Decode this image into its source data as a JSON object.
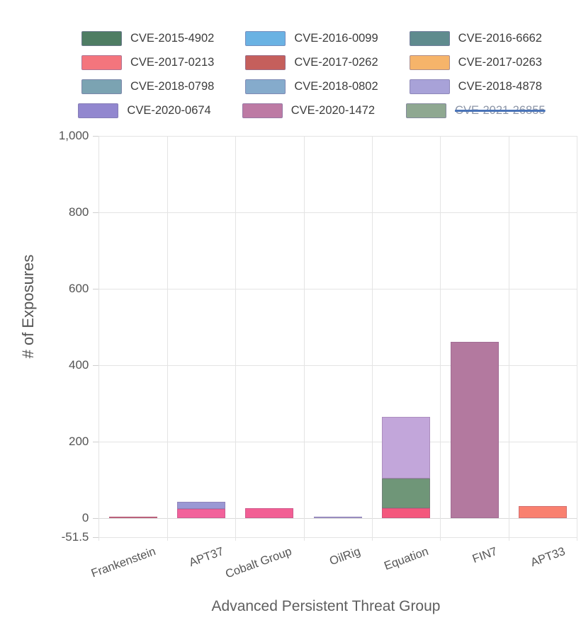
{
  "legend": {
    "rows": [
      [
        {
          "label": "CVE-2015-4902",
          "color": "#4e7d63",
          "disabled": false
        },
        {
          "label": "CVE-2016-0099",
          "color": "#6ab2e3",
          "disabled": false
        },
        {
          "label": "CVE-2016-6662",
          "color": "#5f8b8e",
          "disabled": false
        }
      ],
      [
        {
          "label": "CVE-2017-0213",
          "color": "#f4757d",
          "disabled": false
        },
        {
          "label": "CVE-2017-0262",
          "color": "#c55f5c",
          "disabled": false
        },
        {
          "label": "CVE-2017-0263",
          "color": "#f6b46a",
          "disabled": false
        }
      ],
      [
        {
          "label": "CVE-2018-0798",
          "color": "#7ba3b2",
          "disabled": false
        },
        {
          "label": "CVE-2018-0802",
          "color": "#85abcc",
          "disabled": false
        },
        {
          "label": "CVE-2018-4878",
          "color": "#a8a2d8",
          "disabled": false
        }
      ],
      [
        {
          "label": "CVE-2020-0674",
          "color": "#9287cf",
          "disabled": false
        },
        {
          "label": "CVE-2020-1472",
          "color": "#bd7aa4",
          "disabled": false
        },
        {
          "label": "CVE-2021-26855",
          "color": "#8fa891",
          "disabled": true
        }
      ]
    ]
  },
  "y_axis": {
    "title": "# of Exposures",
    "ticks": [
      {
        "label": "1,000",
        "value": 1000
      },
      {
        "label": "800",
        "value": 800
      },
      {
        "label": "600",
        "value": 600
      },
      {
        "label": "400",
        "value": 400
      },
      {
        "label": "200",
        "value": 200
      },
      {
        "label": "0",
        "value": 0
      },
      {
        "label": "-51.5",
        "value": -51.5
      }
    ],
    "range_min": -51.5,
    "range_max": 1000
  },
  "x_axis": {
    "title": "Advanced Persistent Threat Group",
    "categories": [
      "Frankenstein",
      "APT37",
      "Cobalt Group",
      "OilRig",
      "Equation",
      "FIN7",
      "APT33"
    ]
  },
  "chart_data": {
    "type": "bar",
    "stacking": "stacked",
    "title": "",
    "xlabel": "Advanced Persistent Threat Group",
    "ylabel": "# of Exposures",
    "ylim": [
      -51.5,
      1000
    ],
    "grid": true,
    "legend_position": "top",
    "categories": [
      "Frankenstein",
      "APT37",
      "Cobalt Group",
      "OilRig",
      "Equation",
      "FIN7",
      "APT33"
    ],
    "series": [
      {
        "name": "CVE-2017-0213",
        "values": [
          0,
          24,
          26,
          0,
          25,
          0,
          30
        ]
      },
      {
        "name": "CVE-2017-0262",
        "values": [
          3,
          0,
          0,
          0,
          0,
          0,
          0
        ]
      },
      {
        "name": "CVE-2015-4902",
        "values": [
          0,
          0,
          0,
          0,
          78,
          0,
          0
        ]
      },
      {
        "name": "CVE-2018-4878",
        "values": [
          0,
          17,
          0,
          3,
          162,
          0,
          0
        ]
      },
      {
        "name": "CVE-2020-1472",
        "values": [
          0,
          0,
          0,
          0,
          0,
          460,
          0
        ]
      }
    ],
    "hidden_series": [
      "CVE-2021-26855"
    ],
    "bars": [
      {
        "group": "Frankenstein",
        "total": 3,
        "segments": [
          {
            "cve": "CVE-2017-0262",
            "from": 0,
            "to": 3,
            "color": "#d4687c"
          }
        ]
      },
      {
        "group": "APT37",
        "total": 41,
        "segments": [
          {
            "cve": "CVE-2017-0213",
            "from": 0,
            "to": 24,
            "color": "#f2629b"
          },
          {
            "cve": "CVE-2018-4878",
            "from": 24,
            "to": 41,
            "color": "#9a98d4"
          }
        ]
      },
      {
        "group": "Cobalt Group",
        "total": 26,
        "segments": [
          {
            "cve": "CVE-2017-0213",
            "from": 0,
            "to": 26,
            "color": "#f25f94"
          }
        ]
      },
      {
        "group": "OilRig",
        "total": 3,
        "segments": [
          {
            "cve": "CVE-2018-4878",
            "from": 0,
            "to": 3,
            "color": "#a5a5da"
          }
        ]
      },
      {
        "group": "Equation",
        "total": 265,
        "segments": [
          {
            "cve": "CVE-2017-0213",
            "from": 0,
            "to": 25,
            "color": "#f4577d"
          },
          {
            "cve": "CVE-2015-4902",
            "from": 25,
            "to": 103,
            "color": "#6f9678"
          },
          {
            "cve": "CVE-2018-4878",
            "from": 103,
            "to": 265,
            "color": "#c2a6da"
          }
        ]
      },
      {
        "group": "FIN7",
        "total": 460,
        "segments": [
          {
            "cve": "CVE-2020-1472",
            "from": 0,
            "to": 460,
            "color": "#b3799f"
          }
        ]
      },
      {
        "group": "APT33",
        "total": 30,
        "segments": [
          {
            "cve": "CVE-2017-0213",
            "from": 0,
            "to": 30,
            "color": "#f9806f"
          }
        ]
      }
    ]
  },
  "colors": {
    "grid": "#e4e4e4",
    "zero_line": "#dadada",
    "axis_text": "#545454",
    "legend_text": "#3d3d3d",
    "disabled_text": "#8d96a8",
    "disabled_strike": "#4a74b8",
    "background": "#ffffff"
  }
}
